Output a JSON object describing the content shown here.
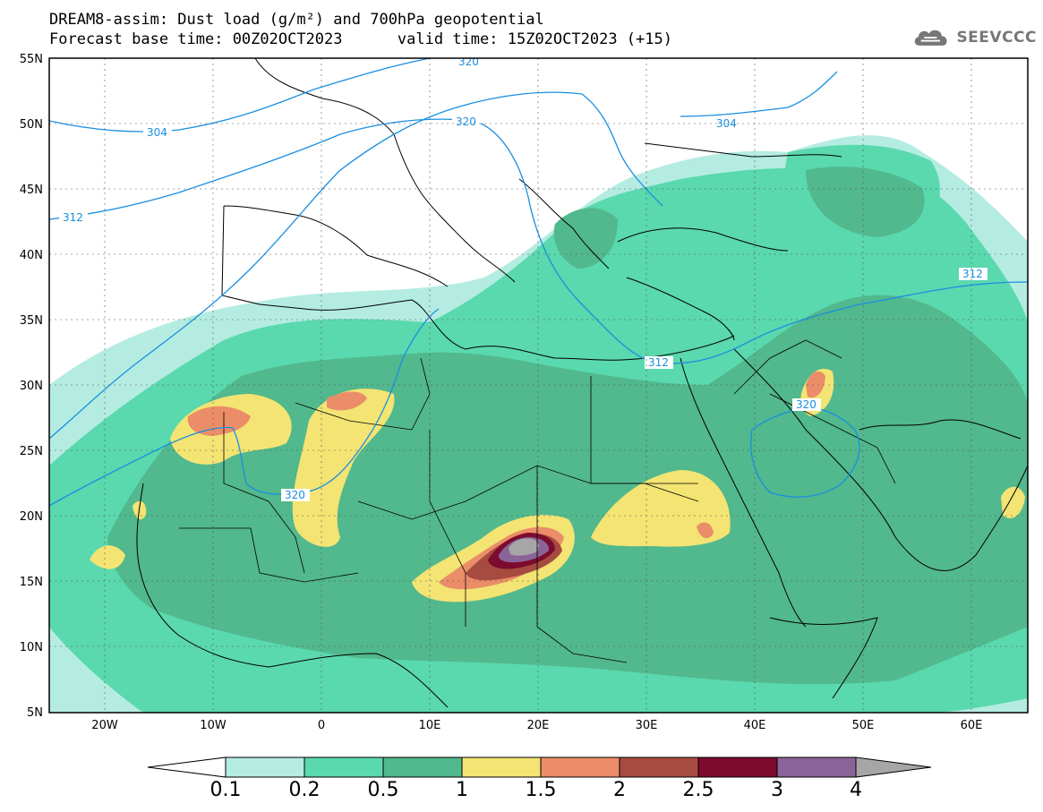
{
  "title": {
    "line1": "DREAM8-assim: Dust load (g/m²) and 700hPa geopotential",
    "line2": "Forecast base time: 00Z02OCT2023      valid time: 15Z02OCT2023 (+15)"
  },
  "logo": {
    "text": "SEEVCCC",
    "icon": "cloud-logo-icon",
    "color": "#777777"
  },
  "axes": {
    "lat_labels": [
      "55N",
      "50N",
      "45N",
      "40N",
      "35N",
      "30N",
      "25N",
      "20N",
      "15N",
      "10N",
      "5N"
    ],
    "lon_labels": [
      "20W",
      "10W",
      "0",
      "10E",
      "20E",
      "30E",
      "40E",
      "50E",
      "60E"
    ],
    "lat_range": [
      5,
      55
    ],
    "lon_range": [
      -25,
      65
    ],
    "grid": true
  },
  "contours": {
    "color": "#1a8fe0",
    "labels": [
      "304",
      "304",
      "312",
      "312",
      "320",
      "320",
      "312",
      "320",
      "320"
    ]
  },
  "colorbar": {
    "ticks": [
      "0.1",
      "0.2",
      "0.5",
      "1",
      "1.5",
      "2",
      "2.5",
      "3",
      "4"
    ],
    "colors": [
      "#b5ece2",
      "#5ad8ae",
      "#52b88d",
      "#f3e473",
      "#eb8d68",
      "#a64b3f",
      "#7c0b2e",
      "#8a6399",
      "#a6a6a6"
    ]
  },
  "palette": {
    "c01": "#b5ece2",
    "c02": "#5ad8ae",
    "c05": "#52b88d",
    "c10": "#f3e473",
    "c15": "#eb8d68",
    "c20": "#a64b3f",
    "c25": "#7c0b2e",
    "c30": "#8a6399",
    "c40": "#a6a6a6"
  }
}
